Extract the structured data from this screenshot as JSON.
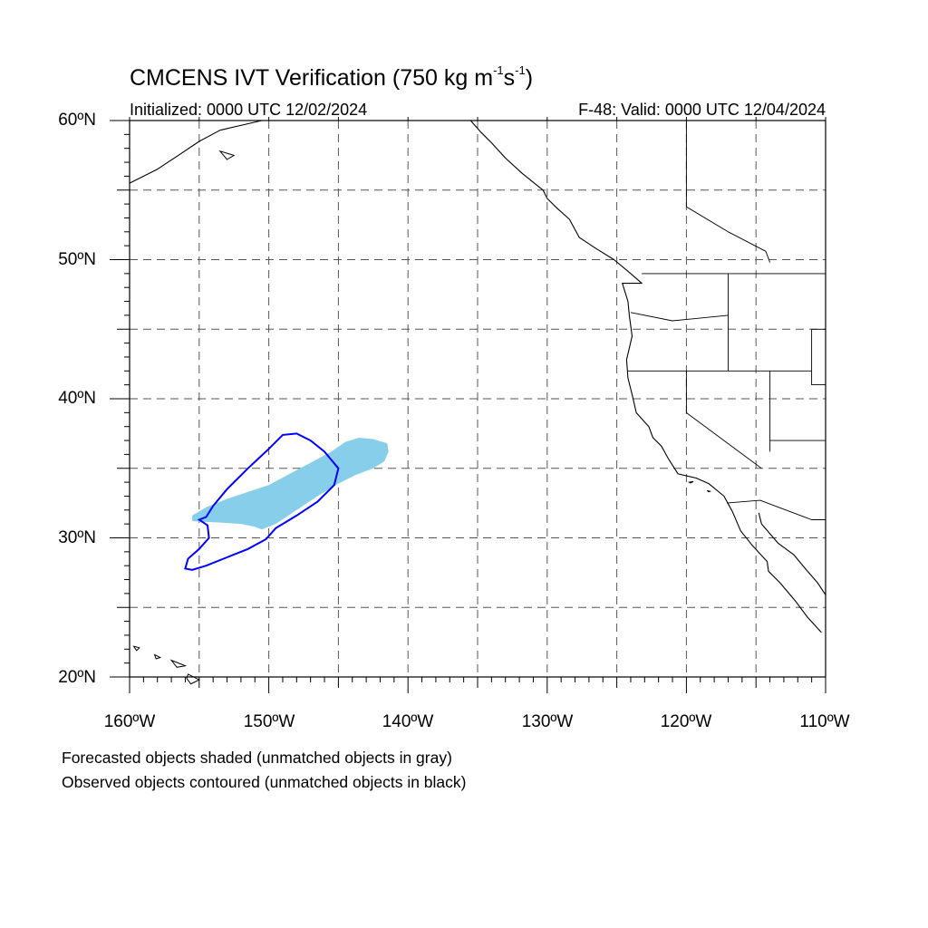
{
  "title": {
    "main": "CMCENS IVT Verification (750 kg m",
    "exp1": "-1",
    "mid": "s",
    "exp2": "-1",
    "end": ")"
  },
  "subtitle_left": "Initialized: 0000 UTC 12/02/2024",
  "subtitle_right": "F-48: Valid: 0000 UTC 12/04/2024",
  "captions": [
    "Forecasted objects shaded (unmatched objects in gray)",
    "Observed objects contoured (unmatched objects in black)"
  ],
  "axes": {
    "lat_labels": [
      "60ºN",
      "50ºN",
      "40ºN",
      "30ºN",
      "20ºN"
    ],
    "lon_labels": [
      "160ºW",
      "150ºW",
      "140ºW",
      "130ºW",
      "120ºW",
      "110ºW"
    ]
  },
  "map": {
    "lon_range": [
      -160,
      -110
    ],
    "lat_range": [
      20,
      60
    ],
    "grid_lon_step": 5,
    "grid_lat_step": 5,
    "grid": "dashed",
    "forecast_color": "#87CEEB",
    "observed_color": "#0000FF",
    "forecast_object": [
      [
        -155.5,
        31.6
      ],
      [
        -154.5,
        32.2
      ],
      [
        -153.0,
        32.8
      ],
      [
        -151.5,
        33.3
      ],
      [
        -150.0,
        33.8
      ],
      [
        -148.5,
        34.6
      ],
      [
        -147.0,
        35.4
      ],
      [
        -145.5,
        36.2
      ],
      [
        -144.5,
        36.9
      ],
      [
        -143.5,
        37.2
      ],
      [
        -142.5,
        37.1
      ],
      [
        -141.5,
        36.8
      ],
      [
        -141.4,
        36.2
      ],
      [
        -141.7,
        35.5
      ],
      [
        -142.5,
        35.0
      ],
      [
        -143.8,
        34.5
      ],
      [
        -145.0,
        33.9
      ],
      [
        -146.5,
        33.0
      ],
      [
        -148.0,
        32.0
      ],
      [
        -149.5,
        31.0
      ],
      [
        -150.5,
        30.6
      ],
      [
        -151.0,
        30.8
      ],
      [
        -152.0,
        31.0
      ],
      [
        -153.5,
        31.1
      ],
      [
        -155.5,
        31.2
      ]
    ],
    "observed_object": [
      [
        -154.5,
        31.5
      ],
      [
        -154.0,
        32.3
      ],
      [
        -153.0,
        33.5
      ],
      [
        -151.5,
        35.0
      ],
      [
        -150.0,
        36.4
      ],
      [
        -149.0,
        37.4
      ],
      [
        -148.0,
        37.5
      ],
      [
        -147.0,
        37.0
      ],
      [
        -146.0,
        36.2
      ],
      [
        -145.0,
        35.0
      ],
      [
        -145.3,
        33.8
      ],
      [
        -146.5,
        32.6
      ],
      [
        -148.0,
        31.6
      ],
      [
        -149.5,
        30.7
      ],
      [
        -150.2,
        29.9
      ],
      [
        -151.5,
        29.2
      ],
      [
        -153.0,
        28.6
      ],
      [
        -154.5,
        28.0
      ],
      [
        -155.5,
        27.7
      ],
      [
        -156.0,
        27.8
      ],
      [
        -155.8,
        28.5
      ],
      [
        -155.0,
        29.2
      ],
      [
        -154.3,
        30.0
      ],
      [
        -154.4,
        30.9
      ],
      [
        -155.0,
        31.3
      ]
    ],
    "coastline": [
      [
        -135.5,
        60.0
      ],
      [
        -134.8,
        59.2
      ],
      [
        -134.0,
        58.4
      ],
      [
        -133.0,
        57.3
      ],
      [
        -131.8,
        56.2
      ],
      [
        -130.3,
        55.0
      ],
      [
        -130.0,
        54.4
      ],
      [
        -129.3,
        53.7
      ],
      [
        -128.4,
        52.9
      ],
      [
        -127.7,
        51.6
      ],
      [
        -126.5,
        50.8
      ],
      [
        -125.2,
        50.0
      ],
      [
        -124.0,
        49.0
      ],
      [
        -123.2,
        48.3
      ],
      [
        -124.6,
        48.3
      ],
      [
        -124.2,
        47.0
      ],
      [
        -124.1,
        46.0
      ],
      [
        -123.9,
        44.5
      ],
      [
        -124.3,
        42.8
      ],
      [
        -124.2,
        41.5
      ],
      [
        -123.9,
        40.3
      ],
      [
        -123.6,
        39.0
      ],
      [
        -122.7,
        38.0
      ],
      [
        -122.4,
        37.2
      ],
      [
        -121.8,
        36.6
      ],
      [
        -121.3,
        35.7
      ],
      [
        -120.6,
        34.6
      ],
      [
        -119.3,
        34.3
      ],
      [
        -118.4,
        33.9
      ],
      [
        -117.3,
        33.0
      ],
      [
        -116.7,
        31.9
      ],
      [
        -116.1,
        30.5
      ],
      [
        -115.3,
        29.5
      ],
      [
        -114.2,
        28.3
      ],
      [
        -114.1,
        27.6
      ],
      [
        -113.3,
        26.8
      ],
      [
        -112.2,
        25.5
      ],
      [
        -111.3,
        24.3
      ],
      [
        -110.3,
        23.2
      ]
    ],
    "gulf_coast": [
      [
        -114.8,
        31.8
      ],
      [
        -114.6,
        31.0
      ],
      [
        -113.4,
        29.6
      ],
      [
        -112.3,
        28.8
      ],
      [
        -111.3,
        27.6
      ],
      [
        -110.6,
        26.8
      ],
      [
        -110.0,
        25.9
      ]
    ],
    "alaska_coast": [
      [
        -160.0,
        55.5
      ],
      [
        -158.0,
        56.5
      ],
      [
        -156.5,
        57.5
      ],
      [
        -155.0,
        58.5
      ],
      [
        -153.5,
        59.3
      ],
      [
        -151.8,
        59.7
      ],
      [
        -150.5,
        60.0
      ]
    ],
    "borders": [
      [
        [
          -123.2,
          49.0
        ],
        [
          -110.0,
          49.0
        ]
      ],
      [
        [
          -120.0,
          60.0
        ],
        [
          -120.0,
          53.8
        ],
        [
          -117.0,
          52.0
        ],
        [
          -114.3,
          50.6
        ],
        [
          -114.0,
          49.8
        ]
      ],
      [
        [
          -124.0,
          46.2
        ],
        [
          -121.0,
          45.6
        ],
        [
          -117.0,
          46.0
        ]
      ],
      [
        [
          -117.0,
          49.0
        ],
        [
          -117.0,
          42.0
        ]
      ],
      [
        [
          -124.2,
          42.0
        ],
        [
          -111.0,
          42.0
        ]
      ],
      [
        [
          -120.0,
          42.0
        ],
        [
          -120.0,
          39.0
        ],
        [
          -114.6,
          35.0
        ]
      ],
      [
        [
          -114.0,
          42.0
        ],
        [
          -114.0,
          36.2
        ]
      ],
      [
        [
          -111.0,
          45.0
        ],
        [
          -110.0,
          45.0
        ]
      ],
      [
        [
          -111.0,
          45.0
        ],
        [
          -111.0,
          41.0
        ],
        [
          -110.0,
          41.0
        ]
      ],
      [
        [
          -114.0,
          37.0
        ],
        [
          -110.0,
          37.0
        ]
      ],
      [
        [
          -117.1,
          32.5
        ],
        [
          -114.7,
          32.7
        ],
        [
          -111.0,
          31.3
        ],
        [
          -110.0,
          31.3
        ]
      ]
    ],
    "islands": [
      [
        [
          -119.8,
          34.0
        ],
        [
          -119.5,
          34.05
        ],
        [
          -119.7,
          33.95
        ]
      ],
      [
        [
          -118.5,
          33.4
        ],
        [
          -118.3,
          33.35
        ],
        [
          -118.4,
          33.3
        ]
      ],
      [
        [
          -155.8,
          20.2
        ],
        [
          -155.0,
          19.8
        ],
        [
          -155.6,
          19.5
        ],
        [
          -155.9,
          19.9
        ]
      ],
      [
        [
          -157.0,
          21.2
        ],
        [
          -156.5,
          21.0
        ],
        [
          -156.0,
          20.8
        ],
        [
          -156.6,
          20.7
        ]
      ],
      [
        [
          -158.2,
          21.6
        ],
        [
          -157.8,
          21.4
        ],
        [
          -158.1,
          21.3
        ]
      ],
      [
        [
          -159.7,
          22.2
        ],
        [
          -159.3,
          22.1
        ],
        [
          -159.5,
          21.9
        ]
      ],
      [
        [
          -153.5,
          57.8
        ],
        [
          -152.5,
          57.5
        ],
        [
          -153.0,
          57.2
        ]
      ]
    ]
  }
}
